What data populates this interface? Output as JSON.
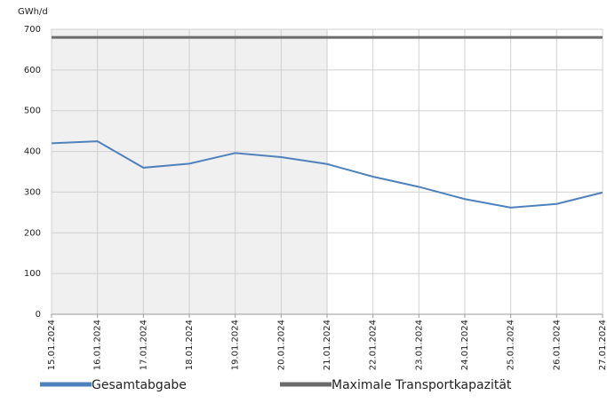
{
  "chart_data": {
    "type": "line",
    "y_unit": "GWh/d",
    "categories": [
      "15.01.2024",
      "16.01.2024",
      "17.01.2024",
      "18.01.2024",
      "19.01.2024",
      "20.01.2024",
      "21.01.2024",
      "22.01.2024",
      "23.01.2024",
      "24.01.2024",
      "25.01.2024",
      "26.01.2024",
      "27.01.2024"
    ],
    "series": [
      {
        "name": "Gesamtabgabe",
        "color": "#4f81bd",
        "values": [
          420,
          425,
          360,
          370,
          396,
          386,
          369,
          338,
          313,
          283,
          262,
          271,
          299
        ]
      },
      {
        "name": "Maximale Transportkapazität",
        "color": "#6b6b6b",
        "values": [
          680,
          680,
          680,
          680,
          680,
          680,
          680,
          680,
          680,
          680,
          680,
          680,
          680
        ]
      }
    ],
    "highlight_range": [
      0,
      6
    ],
    "highlight_color": "#f0f0f0",
    "ylim": [
      0,
      700
    ],
    "yticks": [
      0,
      100,
      200,
      300,
      400,
      500,
      600,
      700
    ],
    "grid": true
  }
}
